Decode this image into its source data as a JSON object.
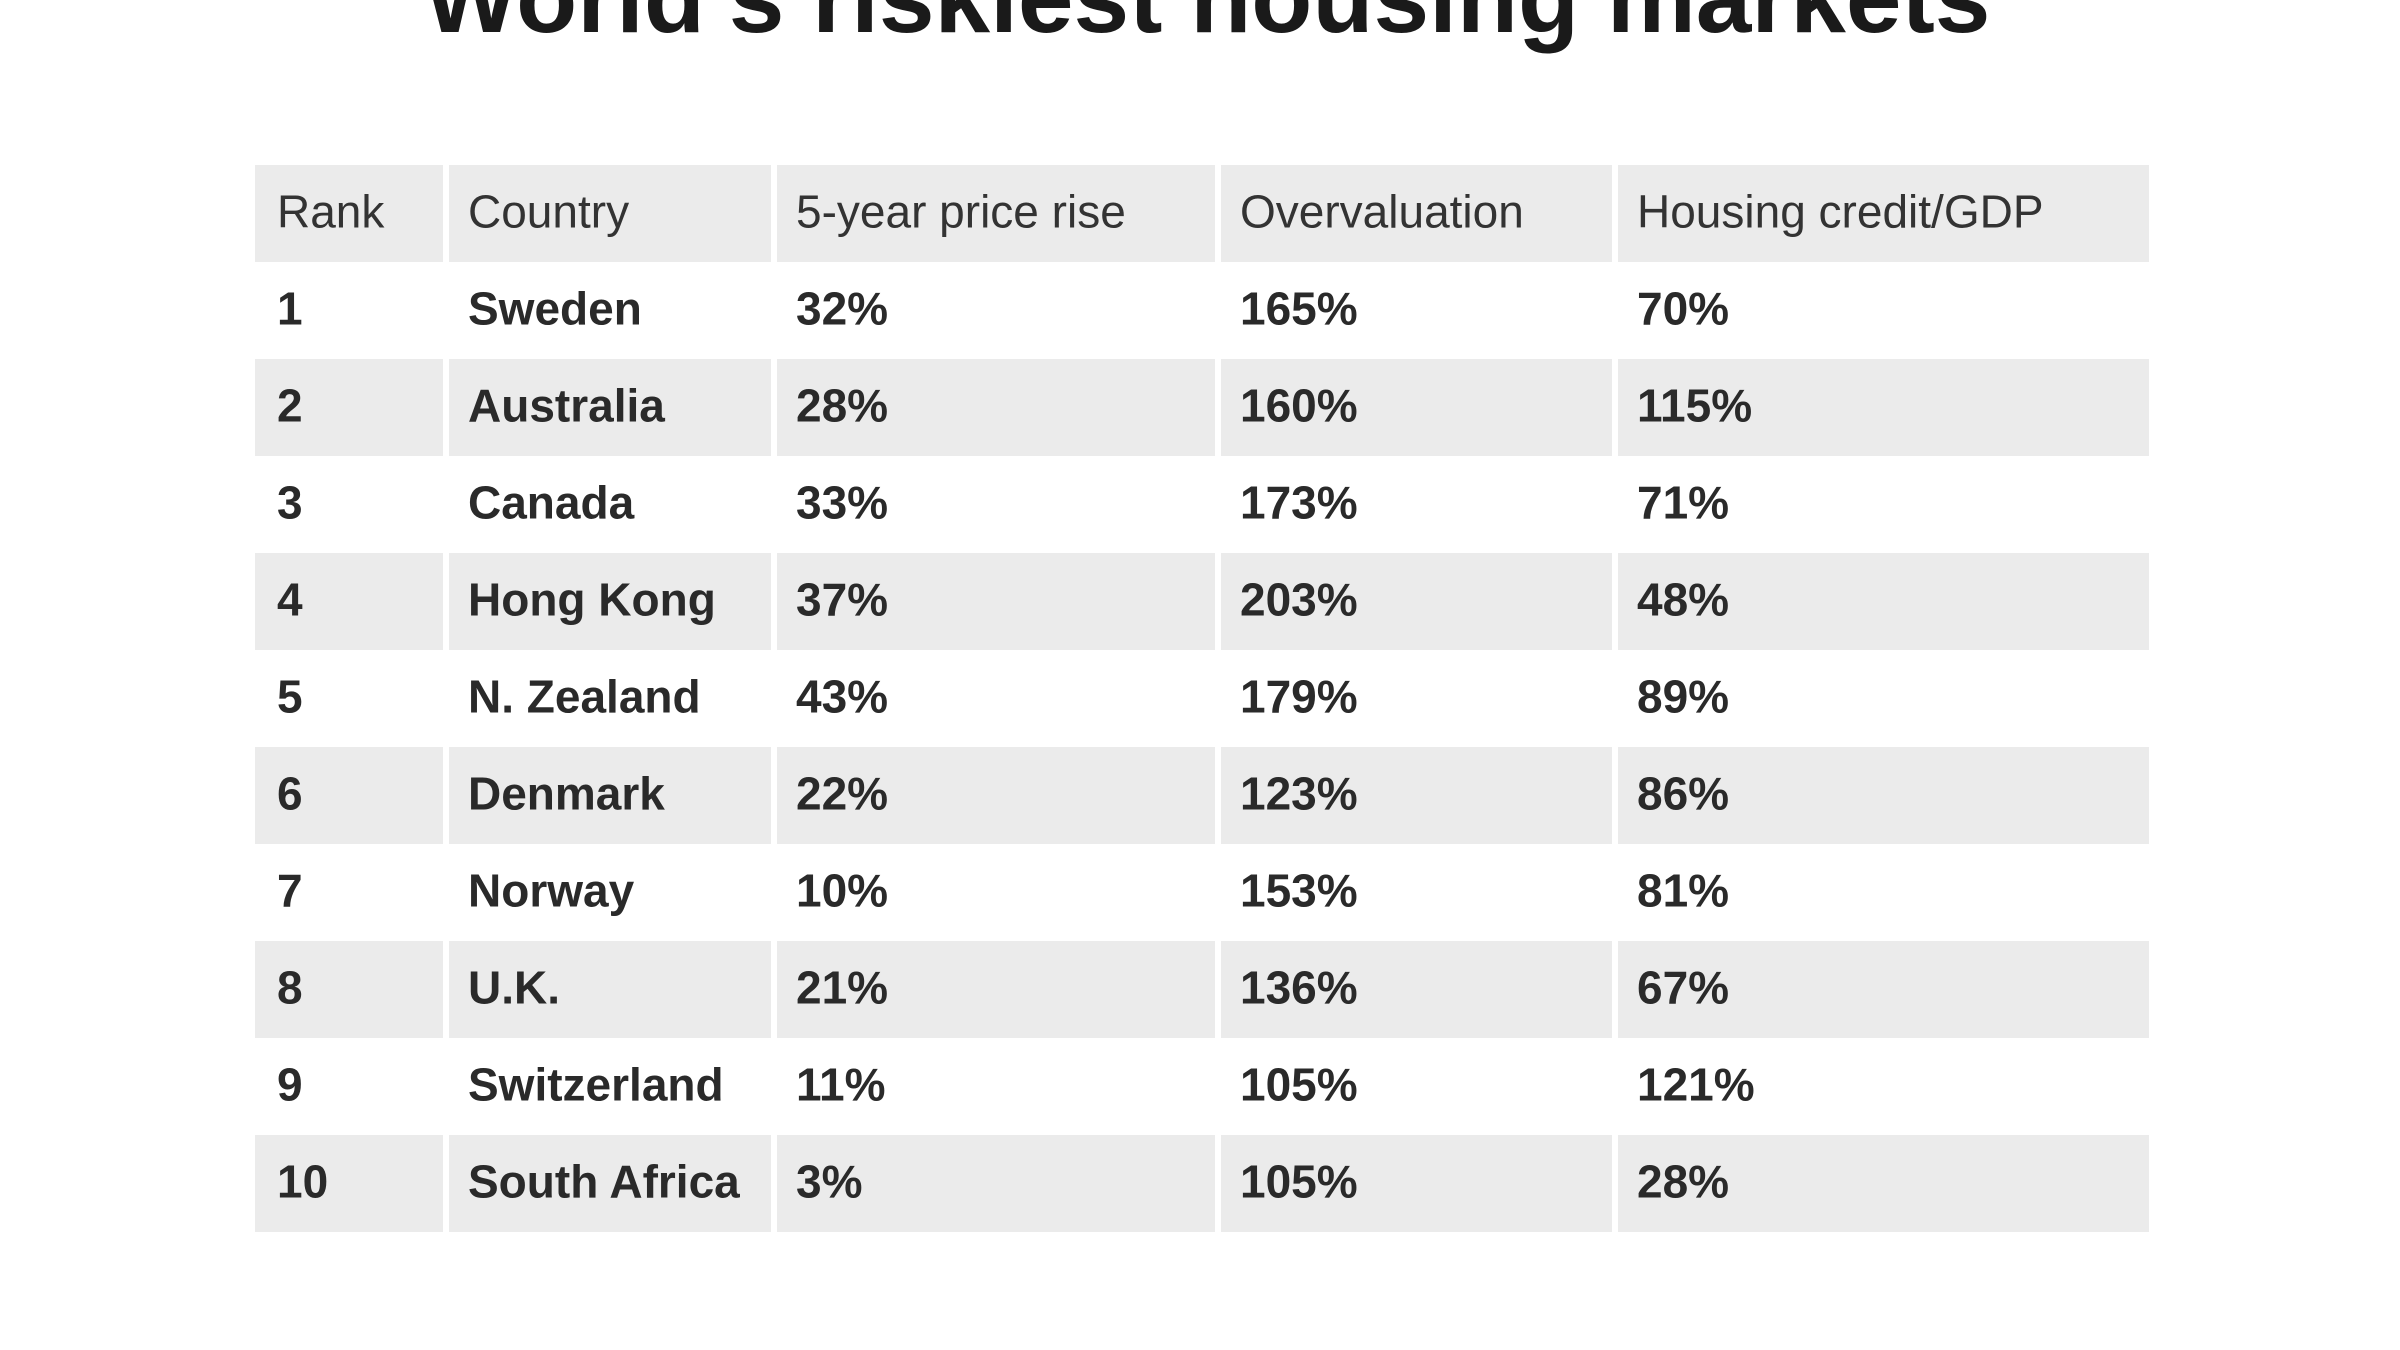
{
  "header": {
    "title": "World's riskiest housing markets"
  },
  "table": {
    "columns": [
      "Rank",
      "Country",
      "5-year price rise",
      "Overvaluation",
      "Housing credit/GDP"
    ],
    "rows": [
      [
        "1",
        "Sweden",
        "32%",
        "165%",
        "70%"
      ],
      [
        "2",
        "Australia",
        "28%",
        "160%",
        "115%"
      ],
      [
        "3",
        "Canada",
        "33%",
        "173%",
        "71%"
      ],
      [
        "4",
        "Hong Kong",
        "37%",
        "203%",
        "48%"
      ],
      [
        "5",
        "N. Zealand",
        "43%",
        "179%",
        "89%"
      ],
      [
        "6",
        "Denmark",
        "22%",
        "123%",
        "86%"
      ],
      [
        "7",
        "Norway",
        "10%",
        "153%",
        "81%"
      ],
      [
        "8",
        "U.K.",
        "21%",
        "136%",
        "67%"
      ],
      [
        "9",
        "Switzerland",
        "11%",
        "105%",
        "121%"
      ],
      [
        "10",
        "South Africa",
        "3%",
        "105%",
        "28%"
      ]
    ]
  }
}
